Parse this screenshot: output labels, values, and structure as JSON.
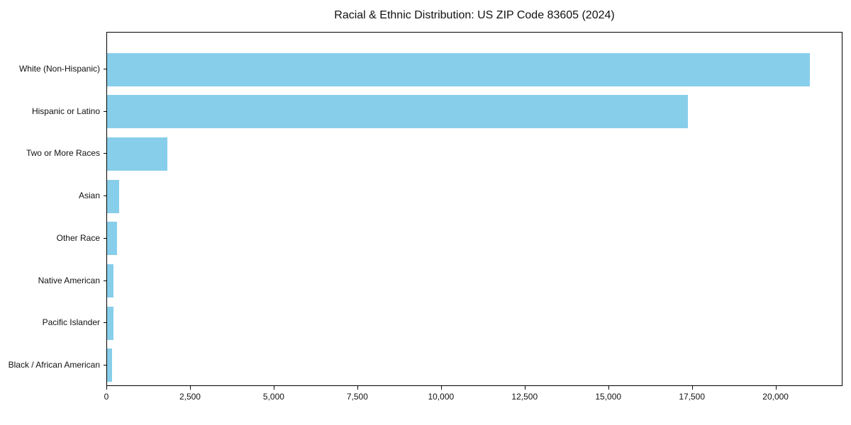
{
  "chart_data": {
    "type": "bar",
    "orientation": "horizontal",
    "title": "Racial & Ethnic Distribution: US ZIP Code 83605 (2024)",
    "categories": [
      "White (Non-Hispanic)",
      "Hispanic or Latino",
      "Two or More Races",
      "Asian",
      "Other Race",
      "Native American",
      "Pacific Islander",
      "Black / African American"
    ],
    "values": [
      21000,
      17350,
      1800,
      350,
      300,
      200,
      200,
      150
    ],
    "xlabel": "",
    "ylabel": "",
    "xlim": [
      0,
      22000
    ],
    "xticks": [
      0,
      2500,
      5000,
      7500,
      10000,
      12500,
      15000,
      17500,
      20000
    ],
    "xtick_labels": [
      "0",
      "2,500",
      "5,000",
      "7,500",
      "10,000",
      "12,500",
      "15,000",
      "17,500",
      "20,000"
    ],
    "bar_color": "#87CEEB",
    "axis_color": "#000000",
    "grid": false,
    "legend": "none"
  }
}
